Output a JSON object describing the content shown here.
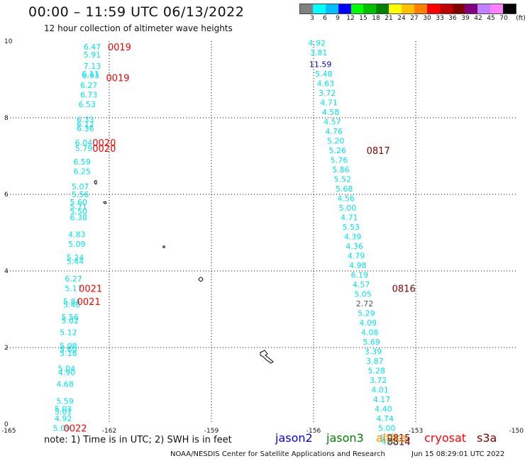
{
  "header": {
    "title": "00:00 – 11:59 UTC 06/13/2022",
    "subtitle": "12 hour collection of altimeter wave heights"
  },
  "colorbar": {
    "colors": [
      "#808080",
      "#00ffff",
      "#00bfff",
      "#0000ff",
      "#00ff00",
      "#00c000",
      "#008000",
      "#ffff00",
      "#ffc000",
      "#ff8000",
      "#ff0000",
      "#c00000",
      "#800000",
      "#800080",
      "#c080ff",
      "#ff80ff",
      "#000000"
    ],
    "labels": [
      "3",
      "6",
      "9",
      "12",
      "15",
      "18",
      "21",
      "24",
      "27",
      "30",
      "33",
      "36",
      "39",
      "42",
      "45",
      "70",
      "(ft)"
    ]
  },
  "map": {
    "x_ticks": [
      "-165",
      "-162",
      "-159",
      "-156",
      "-153",
      "-150"
    ],
    "y_ticks": [
      "0",
      "2",
      "4",
      "6",
      "8",
      "10"
    ],
    "x_range": [
      -165,
      -150
    ],
    "y_range": [
      0,
      10
    ],
    "colors": {
      "cyan": "#00e5ee",
      "blue": "#0000cc",
      "gray": "#555555",
      "red": "#ff0000",
      "darkred": "#800000"
    },
    "left_track": [
      {
        "lon": -162.5,
        "lat": 9.85,
        "v": "6.47",
        "c": "cyan"
      },
      {
        "lon": -162.5,
        "lat": 9.65,
        "v": "5.91",
        "c": "cyan"
      },
      {
        "lon": -162.5,
        "lat": 9.35,
        "v": "7.13",
        "c": "cyan"
      },
      {
        "lon": -162.55,
        "lat": 9.15,
        "v": "6.11",
        "c": "cyan"
      },
      {
        "lon": -162.55,
        "lat": 9.1,
        "v": "6.93",
        "c": "cyan"
      },
      {
        "lon": -162.6,
        "lat": 8.85,
        "v": "6.27",
        "c": "cyan"
      },
      {
        "lon": -162.6,
        "lat": 8.6,
        "v": "6.73",
        "c": "cyan"
      },
      {
        "lon": -162.65,
        "lat": 8.35,
        "v": "6.53",
        "c": "cyan"
      },
      {
        "lon": -162.7,
        "lat": 7.95,
        "v": "6.33",
        "c": "cyan"
      },
      {
        "lon": -162.7,
        "lat": 7.83,
        "v": "6.12",
        "c": "cyan"
      },
      {
        "lon": -162.7,
        "lat": 7.72,
        "v": "6.36",
        "c": "cyan"
      },
      {
        "lon": -162.75,
        "lat": 7.35,
        "v": "6.04",
        "c": "cyan"
      },
      {
        "lon": -162.75,
        "lat": 7.2,
        "v": "5.79",
        "c": "cyan"
      },
      {
        "lon": -162.8,
        "lat": 6.85,
        "v": "6.59",
        "c": "cyan"
      },
      {
        "lon": -162.8,
        "lat": 6.6,
        "v": "6.25",
        "c": "cyan"
      },
      {
        "lon": -162.85,
        "lat": 6.2,
        "v": "5.07",
        "c": "cyan"
      },
      {
        "lon": -162.85,
        "lat": 6.0,
        "v": "5.56",
        "c": "cyan"
      },
      {
        "lon": -162.9,
        "lat": 5.8,
        "v": "5.60",
        "c": "cyan"
      },
      {
        "lon": -162.9,
        "lat": 5.68,
        "v": "5.71",
        "c": "cyan"
      },
      {
        "lon": -162.9,
        "lat": 5.56,
        "v": "5.50",
        "c": "cyan"
      },
      {
        "lon": -162.9,
        "lat": 5.4,
        "v": "6.38",
        "c": "cyan"
      },
      {
        "lon": -162.95,
        "lat": 4.95,
        "v": "4.83",
        "c": "cyan"
      },
      {
        "lon": -162.95,
        "lat": 4.7,
        "v": "5.09",
        "c": "cyan"
      },
      {
        "lon": -163.0,
        "lat": 4.35,
        "v": "5.24",
        "c": "cyan"
      },
      {
        "lon": -163.0,
        "lat": 4.25,
        "v": "5.44",
        "c": "cyan"
      },
      {
        "lon": -163.05,
        "lat": 3.8,
        "v": "6.27",
        "c": "cyan"
      },
      {
        "lon": -163.05,
        "lat": 3.55,
        "v": "5.17",
        "c": "cyan"
      },
      {
        "lon": -163.1,
        "lat": 3.2,
        "v": "5.84",
        "c": "cyan"
      },
      {
        "lon": -163.1,
        "lat": 3.12,
        "v": "5.46",
        "c": "cyan"
      },
      {
        "lon": -163.15,
        "lat": 2.8,
        "v": "5.56",
        "c": "cyan"
      },
      {
        "lon": -163.15,
        "lat": 2.7,
        "v": "5.02",
        "c": "cyan"
      },
      {
        "lon": -163.2,
        "lat": 2.4,
        "v": "5.12",
        "c": "cyan"
      },
      {
        "lon": -163.2,
        "lat": 2.05,
        "v": "5.08",
        "c": "cyan"
      },
      {
        "lon": -163.2,
        "lat": 1.95,
        "v": "5.60",
        "c": "cyan"
      },
      {
        "lon": -163.2,
        "lat": 1.85,
        "v": "5.16",
        "c": "cyan"
      },
      {
        "lon": -163.25,
        "lat": 1.45,
        "v": "5.04",
        "c": "cyan"
      },
      {
        "lon": -163.25,
        "lat": 1.35,
        "v": "4.90",
        "c": "cyan"
      },
      {
        "lon": -163.3,
        "lat": 1.05,
        "v": "4.68",
        "c": "cyan"
      },
      {
        "lon": -163.3,
        "lat": 0.6,
        "v": "5.59",
        "c": "cyan"
      },
      {
        "lon": -163.35,
        "lat": 0.4,
        "v": "5.03",
        "c": "cyan"
      },
      {
        "lon": -163.35,
        "lat": 0.32,
        "v": "5.01",
        "c": "cyan"
      },
      {
        "lon": -163.35,
        "lat": 0.15,
        "v": "4.92",
        "c": "cyan"
      },
      {
        "lon": -163.4,
        "lat": -0.1,
        "v": "5.09",
        "c": "cyan"
      }
    ],
    "right_track": [
      {
        "lon": -155.9,
        "lat": 9.95,
        "v": "4.92",
        "c": "cyan"
      },
      {
        "lon": -155.85,
        "lat": 9.7,
        "v": "3.81",
        "c": "cyan"
      },
      {
        "lon": -155.8,
        "lat": 9.4,
        "v": "11.59",
        "c": "blue"
      },
      {
        "lon": -155.7,
        "lat": 9.15,
        "v": "5.48",
        "c": "cyan"
      },
      {
        "lon": -155.65,
        "lat": 8.9,
        "v": "4.63",
        "c": "cyan"
      },
      {
        "lon": -155.6,
        "lat": 8.65,
        "v": "3.72",
        "c": "cyan"
      },
      {
        "lon": -155.55,
        "lat": 8.4,
        "v": "4.71",
        "c": "cyan"
      },
      {
        "lon": -155.5,
        "lat": 8.15,
        "v": "4.58",
        "c": "cyan"
      },
      {
        "lon": -155.45,
        "lat": 7.9,
        "v": "4.57",
        "c": "cyan"
      },
      {
        "lon": -155.4,
        "lat": 7.65,
        "v": "4.76",
        "c": "cyan"
      },
      {
        "lon": -155.35,
        "lat": 7.4,
        "v": "5.20",
        "c": "cyan"
      },
      {
        "lon": -155.3,
        "lat": 7.15,
        "v": "5.26",
        "c": "cyan"
      },
      {
        "lon": -155.25,
        "lat": 6.9,
        "v": "5.76",
        "c": "cyan"
      },
      {
        "lon": -155.2,
        "lat": 6.65,
        "v": "5.86",
        "c": "cyan"
      },
      {
        "lon": -155.15,
        "lat": 6.4,
        "v": "5.52",
        "c": "cyan"
      },
      {
        "lon": -155.1,
        "lat": 6.15,
        "v": "5.68",
        "c": "cyan"
      },
      {
        "lon": -155.05,
        "lat": 5.9,
        "v": "4.56",
        "c": "cyan"
      },
      {
        "lon": -155.0,
        "lat": 5.65,
        "v": "5.00",
        "c": "cyan"
      },
      {
        "lon": -154.95,
        "lat": 5.4,
        "v": "4.71",
        "c": "cyan"
      },
      {
        "lon": -154.9,
        "lat": 5.15,
        "v": "5.53",
        "c": "cyan"
      },
      {
        "lon": -154.85,
        "lat": 4.9,
        "v": "4.39",
        "c": "cyan"
      },
      {
        "lon": -154.8,
        "lat": 4.65,
        "v": "4.36",
        "c": "cyan"
      },
      {
        "lon": -154.75,
        "lat": 4.4,
        "v": "4.79",
        "c": "cyan"
      },
      {
        "lon": -154.7,
        "lat": 4.15,
        "v": "4.98",
        "c": "cyan"
      },
      {
        "lon": -154.65,
        "lat": 3.9,
        "v": "6.19",
        "c": "cyan"
      },
      {
        "lon": -154.6,
        "lat": 3.65,
        "v": "4.57",
        "c": "cyan"
      },
      {
        "lon": -154.55,
        "lat": 3.4,
        "v": "5.05",
        "c": "cyan"
      },
      {
        "lon": -154.5,
        "lat": 3.15,
        "v": "2.72",
        "c": "gray"
      },
      {
        "lon": -154.45,
        "lat": 2.9,
        "v": "5.29",
        "c": "cyan"
      },
      {
        "lon": -154.4,
        "lat": 2.65,
        "v": "4.09",
        "c": "cyan"
      },
      {
        "lon": -154.35,
        "lat": 2.4,
        "v": "4.08",
        "c": "cyan"
      },
      {
        "lon": -154.3,
        "lat": 2.15,
        "v": "5.69",
        "c": "cyan"
      },
      {
        "lon": -154.25,
        "lat": 1.9,
        "v": "3.39",
        "c": "cyan"
      },
      {
        "lon": -154.2,
        "lat": 1.65,
        "v": "3.87",
        "c": "cyan"
      },
      {
        "lon": -154.15,
        "lat": 1.4,
        "v": "5.28",
        "c": "cyan"
      },
      {
        "lon": -154.1,
        "lat": 1.15,
        "v": "3.72",
        "c": "cyan"
      },
      {
        "lon": -154.05,
        "lat": 0.9,
        "v": "4.01",
        "c": "cyan"
      },
      {
        "lon": -154.0,
        "lat": 0.65,
        "v": "4.17",
        "c": "cyan"
      },
      {
        "lon": -153.95,
        "lat": 0.4,
        "v": "4.40",
        "c": "cyan"
      },
      {
        "lon": -153.9,
        "lat": 0.15,
        "v": "4.74",
        "c": "cyan"
      },
      {
        "lon": -153.85,
        "lat": -0.1,
        "v": "5.00",
        "c": "cyan"
      },
      {
        "lon": -153.8,
        "lat": -0.35,
        "v": "5.02",
        "c": "cyan"
      },
      {
        "lon": -153.75,
        "lat": -0.45,
        "v": "4.85",
        "c": "cyan"
      }
    ],
    "time_labels": [
      {
        "lon": -161.7,
        "lat": 9.85,
        "t": "0019",
        "c": "red"
      },
      {
        "lon": -161.75,
        "lat": 9.05,
        "t": "0019",
        "c": "red"
      },
      {
        "lon": -162.15,
        "lat": 7.35,
        "t": "0020",
        "c": "red"
      },
      {
        "lon": -162.15,
        "lat": 7.2,
        "t": "0020",
        "c": "red"
      },
      {
        "lon": -162.55,
        "lat": 3.55,
        "t": "0021",
        "c": "red"
      },
      {
        "lon": -162.6,
        "lat": 3.2,
        "t": "0021",
        "c": "red"
      },
      {
        "lon": -163.0,
        "lat": -0.1,
        "t": "0022",
        "c": "red"
      },
      {
        "lon": -154.1,
        "lat": 7.15,
        "t": "0817",
        "c": "darkred"
      },
      {
        "lon": -153.35,
        "lat": 3.55,
        "t": "0816",
        "c": "darkred"
      },
      {
        "lon": -153.5,
        "lat": -0.35,
        "t": "0815",
        "c": "darkred"
      },
      {
        "lon": -153.5,
        "lat": -0.45,
        "t": "0814",
        "c": "darkred"
      }
    ]
  },
  "footer": {
    "note": "note: 1) Time is in UTC; 2) SWH is in feet",
    "satellites": [
      {
        "name": "jason2",
        "color": "#0000ff"
      },
      {
        "name": "jason3",
        "color": "#008000"
      },
      {
        "name": "altika",
        "color": "#ff8c00"
      },
      {
        "name": "cryosat",
        "color": "#ff0000"
      },
      {
        "name": "s3a",
        "color": "#800000"
      }
    ],
    "credit": "NOAA/NESDIS Center for Satellite Applications and Research",
    "timestamp": "Jun 15 08:29:01 UTC 2022"
  }
}
